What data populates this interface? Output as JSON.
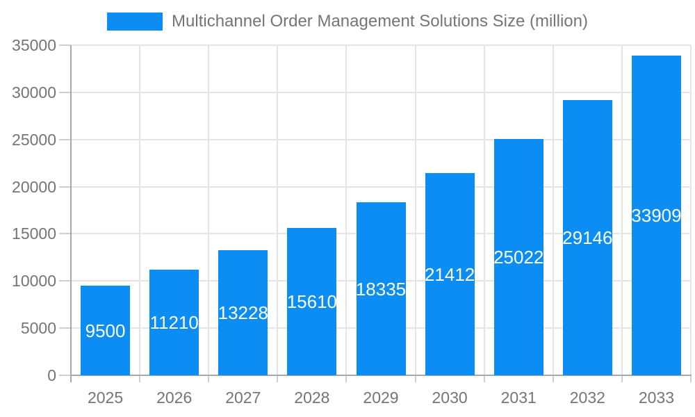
{
  "chart_data": {
    "type": "bar",
    "title": "",
    "legend": {
      "label": "Multichannel Order Management Solutions Size (million)",
      "position": "top"
    },
    "categories": [
      "2025",
      "2026",
      "2027",
      "2028",
      "2029",
      "2030",
      "2031",
      "2032",
      "2033"
    ],
    "values": [
      9500,
      11210,
      13228,
      15610,
      18335,
      21412,
      25022,
      29146,
      33909
    ],
    "xlabel": "",
    "ylabel": "",
    "ylim": [
      0,
      35000
    ],
    "yticks": [
      0,
      5000,
      10000,
      15000,
      20000,
      25000,
      30000,
      35000
    ],
    "grid": true,
    "bar_value_labels": true,
    "colors": {
      "bar": "#0b8df3",
      "bar_label": "#ffffff",
      "axis_text": "#757575",
      "grid_line": "#e4e4e4",
      "tick_line": "#cfcfcf",
      "axis_line": "#a8a8a8",
      "background": "#ffffff"
    }
  }
}
